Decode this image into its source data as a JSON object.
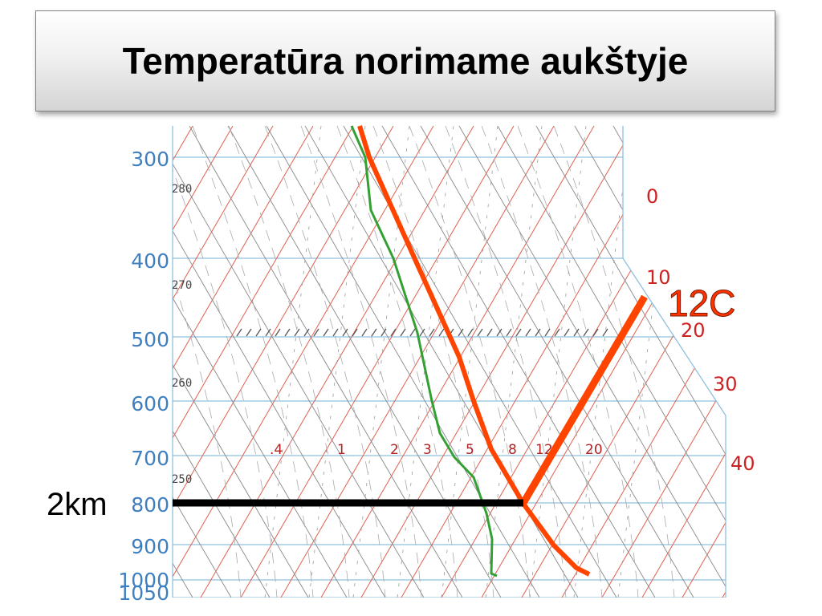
{
  "title": "Temperatūra norimame aukštyje",
  "chart_data": {
    "type": "skew-t",
    "pressure_levels": [
      300,
      400,
      500,
      600,
      700,
      800,
      900,
      1000
    ],
    "pressure_tick_labels": [
      "300",
      "400",
      "500",
      "600",
      "700",
      "800",
      "900",
      "1000",
      "1050"
    ],
    "temperature_labels": [
      "0",
      "10",
      "20",
      "30",
      "40"
    ],
    "theta_labels": [
      "280",
      "270",
      "260",
      "250"
    ],
    "mixing_ratio_labels": [
      ".4",
      "1",
      "2",
      "3",
      "5",
      "8",
      "12",
      "20"
    ],
    "annotations": {
      "level_label": "2km",
      "temperature_callout": "12C"
    },
    "series": [
      {
        "role": "temperature profile",
        "color": "#ff4400"
      },
      {
        "role": "dew point profile",
        "color": "#33a033"
      }
    ]
  },
  "colors": {
    "isobar": "#8fc0dd",
    "isotherm": "#e06050",
    "adiabat": "#888888",
    "profile_red": "#ff4400",
    "profile_green": "#33a033",
    "marker_black": "#000000"
  }
}
